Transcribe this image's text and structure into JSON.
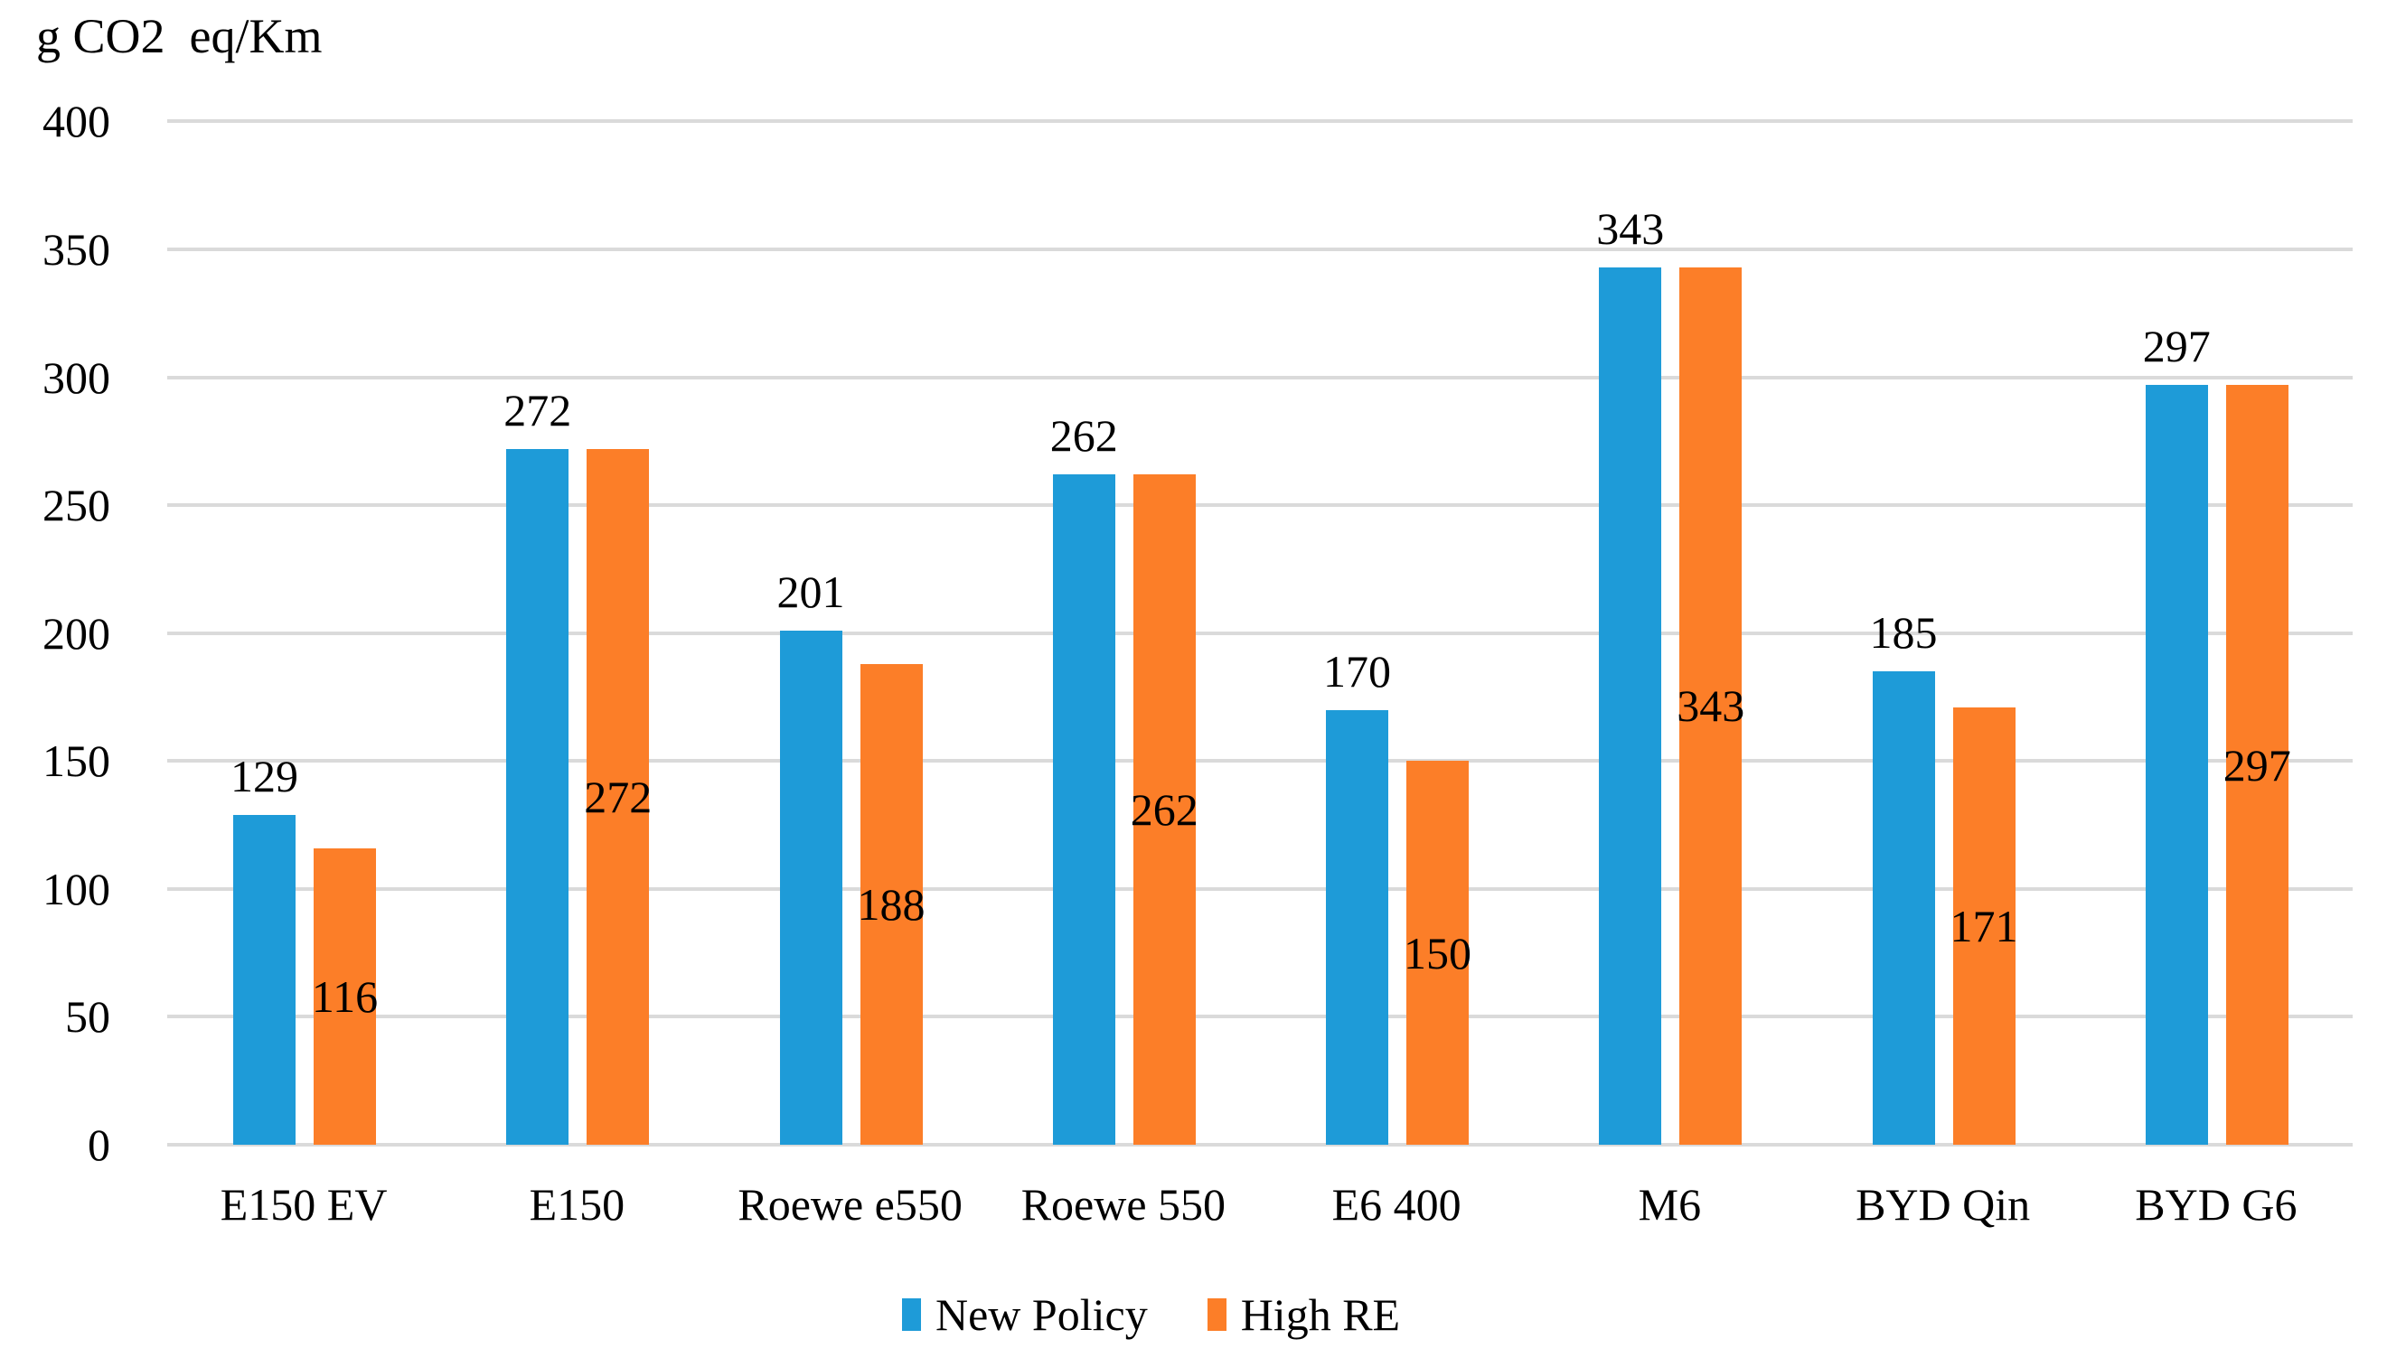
{
  "title": "g CO2  eq/Km",
  "chart_data": {
    "type": "bar",
    "title": "g CO2  eq/Km",
    "categories": [
      "E150 EV",
      "E150",
      "Roewe e550",
      "Roewe 550",
      "E6 400",
      "M6",
      "BYD Qin",
      "BYD G6"
    ],
    "series": [
      {
        "name": "New Policy",
        "color": "#1E9BD8",
        "values": [
          129,
          272,
          201,
          262,
          170,
          343,
          185,
          297
        ],
        "data_labels": [
          "129",
          "272",
          "201",
          "262",
          "170",
          "343",
          "185",
          "297"
        ],
        "label_position": "outside-end"
      },
      {
        "name": "High RE",
        "color": "#FC7E28",
        "values": [
          116,
          272,
          188,
          262,
          150,
          343,
          171,
          297
        ],
        "data_labels": [
          "116",
          "272",
          "188",
          "262",
          "150",
          "343",
          "171",
          "297"
        ],
        "label_position": "inside-center"
      }
    ],
    "ylabel": "g CO2  eq/Km",
    "xlabel": "",
    "ylim": [
      0,
      400
    ],
    "ytick_step": 50,
    "ytick_labels": [
      "0",
      "50",
      "100",
      "150",
      "200",
      "250",
      "300",
      "350",
      "400"
    ],
    "grid": true,
    "gridline_color": "#DADADA",
    "legend_position": "bottom",
    "legend": [
      "New Policy",
      "High RE"
    ],
    "text_color": "#000000"
  }
}
